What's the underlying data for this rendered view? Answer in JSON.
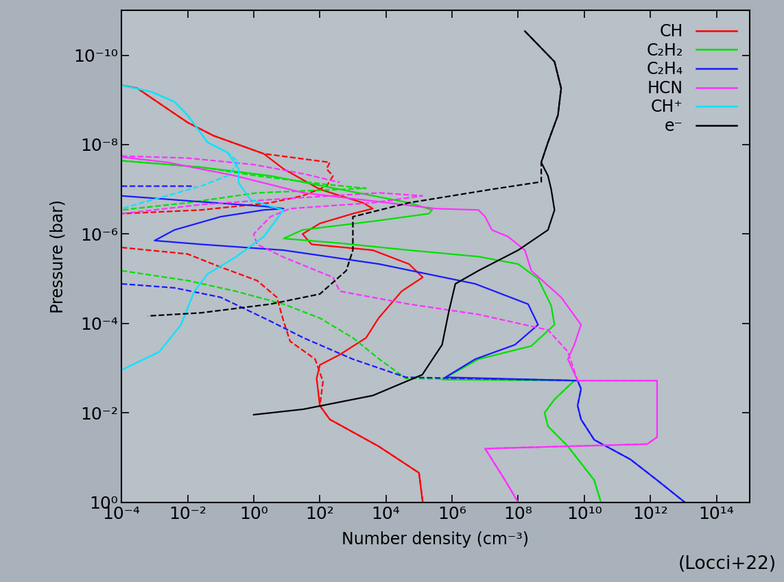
{
  "chart_data": {
    "type": "line",
    "xlabel": "Number density (cm⁻³)",
    "ylabel": "Pressure (bar)",
    "annotation": "(Locci+22)",
    "log": true,
    "legend": "upper right",
    "xlim": [
      0.0001,
      1000000000000000.0
    ],
    "ylim": [
      1,
      1e-11
    ],
    "xticks": [
      {
        "value": 0.0001,
        "label": "10⁻⁴"
      },
      {
        "value": 0.01,
        "label": "10⁻²"
      },
      {
        "value": 1,
        "label": "10⁰"
      },
      {
        "value": 100.0,
        "label": "10²"
      },
      {
        "value": 10000.0,
        "label": "10⁴"
      },
      {
        "value": 1000000.0,
        "label": "10⁶"
      },
      {
        "value": 100000000.0,
        "label": "10⁸"
      },
      {
        "value": 10000000000.0,
        "label": "10¹⁰"
      },
      {
        "value": 1000000000000.0,
        "label": "10¹²"
      },
      {
        "value": 100000000000000.0,
        "label": "10¹⁴"
      }
    ],
    "yticks": [
      {
        "value": 1,
        "label": "10⁰"
      },
      {
        "value": 0.01,
        "label": "10⁻²"
      },
      {
        "value": 0.0001,
        "label": "10⁻⁴"
      },
      {
        "value": 1e-06,
        "label": "10⁻⁶"
      },
      {
        "value": 1e-08,
        "label": "10⁻⁸"
      },
      {
        "value": 1e-10,
        "label": "10⁻¹⁰"
      }
    ],
    "series": [
      {
        "name": "CH",
        "color": "#ff0000",
        "line_style": "solid",
        "x": [
          0.0001,
          0.0003,
          0.0025,
          0.01,
          0.06,
          2,
          8,
          100,
          2000.0,
          4000.0,
          1000.0,
          100,
          30,
          56,
          4000.0,
          50000.0,
          130000.0,
          30000.0,
          6000.0,
          2500.0,
          400,
          100,
          80,
          100,
          200,
          6000.0,
          100000.0,
          130000.0
        ],
        "y": [
          4.7e-10,
          5.5e-10,
          1.6e-09,
          3.2e-09,
          6.3e-09,
          1.6e-08,
          3.5e-08,
          1e-07,
          2e-07,
          2.7e-07,
          3.5e-07,
          5.8e-07,
          1e-06,
          1.7e-06,
          2.3e-06,
          4.7e-06,
          9.3e-06,
          1.9e-05,
          7.6e-05,
          0.00021,
          0.0005,
          0.00085,
          0.0017,
          0.0069,
          0.014,
          0.056,
          0.22,
          1
        ]
      },
      {
        "name": "CH",
        "color": "#ff0000",
        "line_style": "dashed",
        "x": [
          0.0001,
          0.0003,
          0.0025,
          0.01,
          0.06,
          2,
          200,
          160,
          250,
          160,
          30,
          3.2,
          0.025,
          0.0001,
          null,
          0.0001,
          0.01,
          0.1,
          1.26,
          5,
          8,
          12.6,
          72,
          125,
          100,
          200,
          6000.0,
          100000.0,
          130000.0
        ],
        "y": [
          4.7e-10,
          5.5e-10,
          1.6e-09,
          3.2e-09,
          6.3e-09,
          1.6e-08,
          2.5e-08,
          3.5e-08,
          5e-08,
          8.5e-08,
          1.4e-07,
          2e-07,
          2.9e-07,
          3.5e-07,
          null,
          2e-06,
          2.8e-06,
          5.5e-06,
          1.1e-05,
          2.6e-05,
          8.9e-05,
          0.00025,
          0.00063,
          0.002,
          0.0069,
          0.014,
          0.056,
          0.22,
          1
        ]
      },
      {
        "name": "C₂H₂",
        "color": "#00e000",
        "line_style": "solid",
        "x": [
          0.0001,
          0.025,
          3.2,
          400,
          50000.0,
          250000.0,
          200000.0,
          6000.0,
          30,
          8,
          400,
          50000.0,
          6300000.0,
          100000000.0,
          400000000.0,
          1000000000.0,
          1260000000.0,
          250000000.0,
          6300000.0,
          500000.0,
          5000000000.0,
          1260000000.0,
          630000000.0,
          800000000.0,
          3200000000.0,
          20000000000.0,
          32000000000.0
        ],
        "y": [
          2.3e-08,
          3.2e-08,
          5e-08,
          1e-07,
          2e-07,
          2.9e-07,
          3.5e-07,
          5e-07,
          8.1e-07,
          1.26e-06,
          1.6e-06,
          2.3e-06,
          3.2e-06,
          4.7e-06,
          1e-05,
          4e-05,
          0.000107,
          0.00032,
          0.00063,
          0.0018,
          0.0019,
          0.005,
          0.01,
          0.02,
          0.056,
          0.32,
          1
        ]
      },
      {
        "name": "C₂H₂",
        "color": "#00e000",
        "line_style": "dashed",
        "x": [
          0.0001,
          0.025,
          1.26,
          160,
          2500.0,
          100,
          1.26,
          0.01,
          0.0001,
          null,
          0.0001,
          0.01,
          0.28,
          8,
          100,
          1000.0,
          6300.0,
          40000.0,
          5000000000.0,
          1260000000.0,
          630000000.0,
          800000000.0,
          3200000000.0,
          20000000000.0,
          32000000000.0
        ],
        "y": [
          2.3e-08,
          3.2e-08,
          5e-08,
          7.8e-08,
          9.5e-08,
          1.05e-07,
          1.2e-07,
          2e-07,
          2.9e-07,
          null,
          6.6e-06,
          1.1e-05,
          1.9e-05,
          3.7e-05,
          7.6e-05,
          0.00021,
          0.00063,
          0.0017,
          0.0019,
          0.005,
          0.01,
          0.02,
          0.056,
          0.32,
          1
        ]
      },
      {
        "name": "C₂H₄",
        "color": "#1a1aff",
        "line_style": "solid",
        "x": [
          0.0001,
          0.025,
          2,
          8,
          2,
          0.1,
          0.004,
          0.001,
          0.025,
          8,
          6300.0,
          5000000.0,
          200000000.0,
          400000000.0,
          80000000.0,
          5000000.0,
          630000.0,
          6300000000.0,
          8000000000.0,
          6300000000.0,
          8000000000.0,
          20000000000.0,
          250000000000.0,
          1600000000000.0,
          11000000000000.0
        ],
        "y": [
          1.4e-07,
          1.9e-07,
          2.4e-07,
          2.7e-07,
          2.9e-07,
          4.1e-07,
          8.1e-07,
          1.4e-06,
          1.7e-06,
          2.3e-06,
          4.7e-06,
          1.3e-05,
          3.7e-05,
          0.000107,
          0.0003,
          0.00063,
          0.0016,
          0.0019,
          0.0029,
          0.0069,
          0.014,
          0.04,
          0.11,
          0.32,
          1
        ]
      },
      {
        "name": "C₂H₄",
        "color": "#1a1aff",
        "line_style": "dashed",
        "x": [
          0.0001,
          0.016,
          null,
          0.0001,
          0.004,
          0.1,
          3.2,
          32,
          1000.0,
          40000.0,
          6300000000.0,
          8000000000.0,
          6300000000.0,
          8000000000.0,
          20000000000.0,
          250000000000.0,
          1600000000000.0,
          11000000000000.0
        ],
        "y": [
          8.5e-08,
          8.5e-08,
          null,
          1.3e-05,
          1.6e-05,
          2.6e-05,
          8.9e-05,
          0.00021,
          0.00063,
          0.0016,
          0.0019,
          0.0029,
          0.0069,
          0.014,
          0.04,
          0.11,
          0.32,
          1
        ]
      },
      {
        "name": "HCN",
        "color": "#ff30ff",
        "line_style": "solid",
        "x": [
          0.0001,
          0.0025,
          0.28,
          32,
          6300.0,
          320000.0,
          6300000.0,
          10000000.0,
          16000000.0,
          50000000.0,
          160000000.0,
          250000000.0,
          2000000000.0,
          8000000000.0,
          5000000000.0,
          3200000000.0,
          6300000000.0,
          1600000000000.0,
          1600000000000.0,
          800000000000.0,
          10000000.0,
          40000000.0,
          100000000.0
        ],
        "y": [
          1.9e-08,
          2.5e-08,
          5e-08,
          1.2e-07,
          1.9e-07,
          2.7e-07,
          2.9e-07,
          4.1e-07,
          8.1e-07,
          1.15e-06,
          2.3e-06,
          6.6e-06,
          2.6e-05,
          0.000107,
          0.0003,
          0.00063,
          0.0019,
          0.0019,
          0.035,
          0.05,
          0.063,
          0.32,
          1
        ]
      },
      {
        "name": "HCN",
        "color": "#ff30ff",
        "line_style": "dashed",
        "x": [
          0.0001,
          0.01,
          1,
          32,
          400,
          null,
          0.0001,
          0.025,
          3.2,
          6300.0,
          126000.0,
          4000.0,
          12.6,
          3.2,
          1,
          1.26,
          8,
          250,
          400,
          50000.0,
          6300000.0,
          800000000.0,
          3200000000.0,
          6300000000.0,
          1600000000000.0,
          1600000000000.0,
          800000000000.0,
          10000000.0,
          40000000.0,
          100000000.0
        ],
        "y": [
          1.8e-08,
          2e-08,
          2.8e-08,
          4.5e-08,
          7e-08,
          null,
          3.5e-07,
          2.2e-07,
          1.7e-07,
          1.2e-07,
          1.4e-07,
          2e-07,
          2.7e-07,
          4.1e-07,
          1e-06,
          1.7e-06,
          3.3e-06,
          9.3e-06,
          1.9e-05,
          3.7e-05,
          6.3e-05,
          0.00014,
          0.00043,
          0.0019,
          0.0019,
          0.035,
          0.05,
          0.063,
          0.32,
          1
        ]
      },
      {
        "name": "CH⁺",
        "color": "#00e5ff",
        "line_style": "solid",
        "x": [
          0.0001,
          0.0008,
          0.004,
          0.01,
          0.04,
          0.16,
          0.35,
          0.35,
          0.8,
          3.2,
          8,
          2,
          0.28,
          0.04,
          0.016,
          0.0063,
          0.0014,
          0.0001
        ],
        "y": [
          4.7e-10,
          6.6e-10,
          1.1e-09,
          2.2e-09,
          8.9e-09,
          1.5e-08,
          3.5e-08,
          7.2e-08,
          1.7e-07,
          2.4e-07,
          2.9e-07,
          1.15e-06,
          3.3e-06,
          7.9e-06,
          1.9e-05,
          0.000107,
          0.00043,
          0.0011
        ]
      },
      {
        "name": "CH⁺",
        "color": "#00e5ff",
        "line_style": "dashed",
        "x": [
          0.0001,
          0.0008,
          0.004,
          0.01,
          0.04,
          0.16,
          0.35,
          0.16,
          0.025,
          0.0001
        ],
        "y": [
          4.7e-10,
          6.6e-10,
          1.1e-09,
          2.2e-09,
          8.9e-09,
          1.5e-08,
          2.5e-08,
          5e-08,
          8.5e-08,
          2.7e-07
        ]
      },
      {
        "name": "e⁻",
        "color": "#000000",
        "line_style": "solid",
        "x": [
          160000000.0,
          1260000000.0,
          2000000000.0,
          1600000000.0,
          800000000.0,
          500000000.0,
          800000000.0,
          1000000000.0,
          1260000000.0,
          800000000.0,
          100000000.0,
          6300000.0,
          1260000.0,
          800000.0,
          500000.0,
          126000.0,
          4000.0,
          32,
          1
        ],
        "y": [
          2.9e-11,
          1.4e-10,
          5.5e-10,
          2.2e-09,
          8.9e-09,
          2.5e-08,
          5e-08,
          1e-07,
          2.9e-07,
          8.1e-07,
          2.3e-06,
          6.6e-06,
          1.3e-05,
          5.4e-05,
          0.0003,
          0.0014,
          0.0041,
          0.0083,
          0.011
        ]
      },
      {
        "name": "e⁻",
        "color": "#000000",
        "line_style": "dashed",
        "x": [
          160000000.0,
          1260000000.0,
          2000000000.0,
          1600000000.0,
          800000000.0,
          500000000.0,
          500000000.0,
          16000000.0,
          50000.0,
          1000.0,
          1000.0,
          630,
          100,
          3.2,
          0.025,
          0.00063
        ],
        "y": [
          2.9e-11,
          1.4e-10,
          5.5e-10,
          2.2e-09,
          8.9e-09,
          2.5e-08,
          6.8e-08,
          1e-07,
          2e-07,
          4.1e-07,
          2.3e-06,
          6.6e-06,
          2.2e-05,
          3.7e-05,
          5.8e-05,
          6.8e-05
        ]
      }
    ]
  }
}
